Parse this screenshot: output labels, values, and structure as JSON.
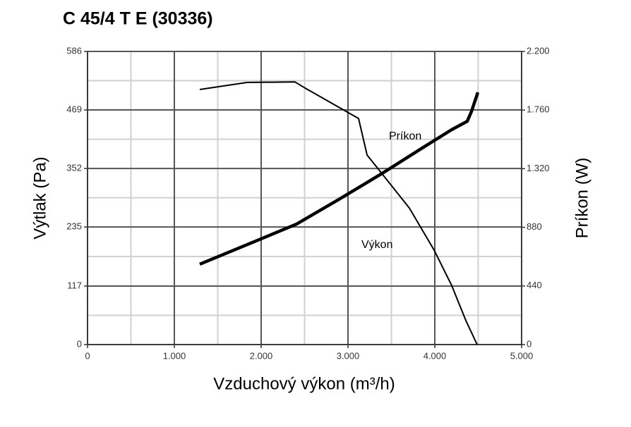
{
  "chart_data": {
    "type": "line",
    "title": "C 45/4 T E (30336)",
    "xlabel": "Vzduchový výkon (m³/h)",
    "ylabel": "Výtlak (Pa)",
    "y2label": "Príkon (W)",
    "xlim": [
      0,
      5000
    ],
    "xticks": [
      0,
      {
        "value": 1000,
        "label": "1.000"
      },
      {
        "value": 2000,
        "label": "2.000"
      },
      {
        "value": 3000,
        "label": "3.000"
      },
      {
        "value": 4000,
        "label": "4.000"
      },
      {
        "value": 5000,
        "label": "5.000"
      }
    ],
    "ylim": [
      0,
      586
    ],
    "yticks": [
      0,
      117,
      235,
      352,
      469,
      586
    ],
    "y2lim": [
      0,
      2200
    ],
    "y2ticks": [
      0,
      440,
      880,
      {
        "value": 1320,
        "label": "1.320"
      },
      {
        "value": 1760,
        "label": "1.760"
      },
      {
        "value": 2200,
        "label": "2.200"
      }
    ],
    "grid": true,
    "series": [
      {
        "name": "Výkon",
        "color": "#000000",
        "axis": "y",
        "x": [
          1293,
          1837,
          2390,
          2504,
          3122,
          3220,
          3707,
          3992,
          4195,
          4358,
          4488
        ],
        "values": [
          510,
          524,
          525,
          513,
          452,
          379,
          273,
          189,
          118,
          48,
          0
        ]
      },
      {
        "name": "Príkon",
        "color": "#000000",
        "axis": "y2",
        "x": [
          1293,
          1919,
          2407,
          2894,
          3382,
          3870,
          4195,
          4374,
          4423,
          4496
        ],
        "values": [
          603,
          772,
          904,
          1089,
          1280,
          1481,
          1613,
          1676,
          1750,
          1893
        ]
      }
    ]
  }
}
